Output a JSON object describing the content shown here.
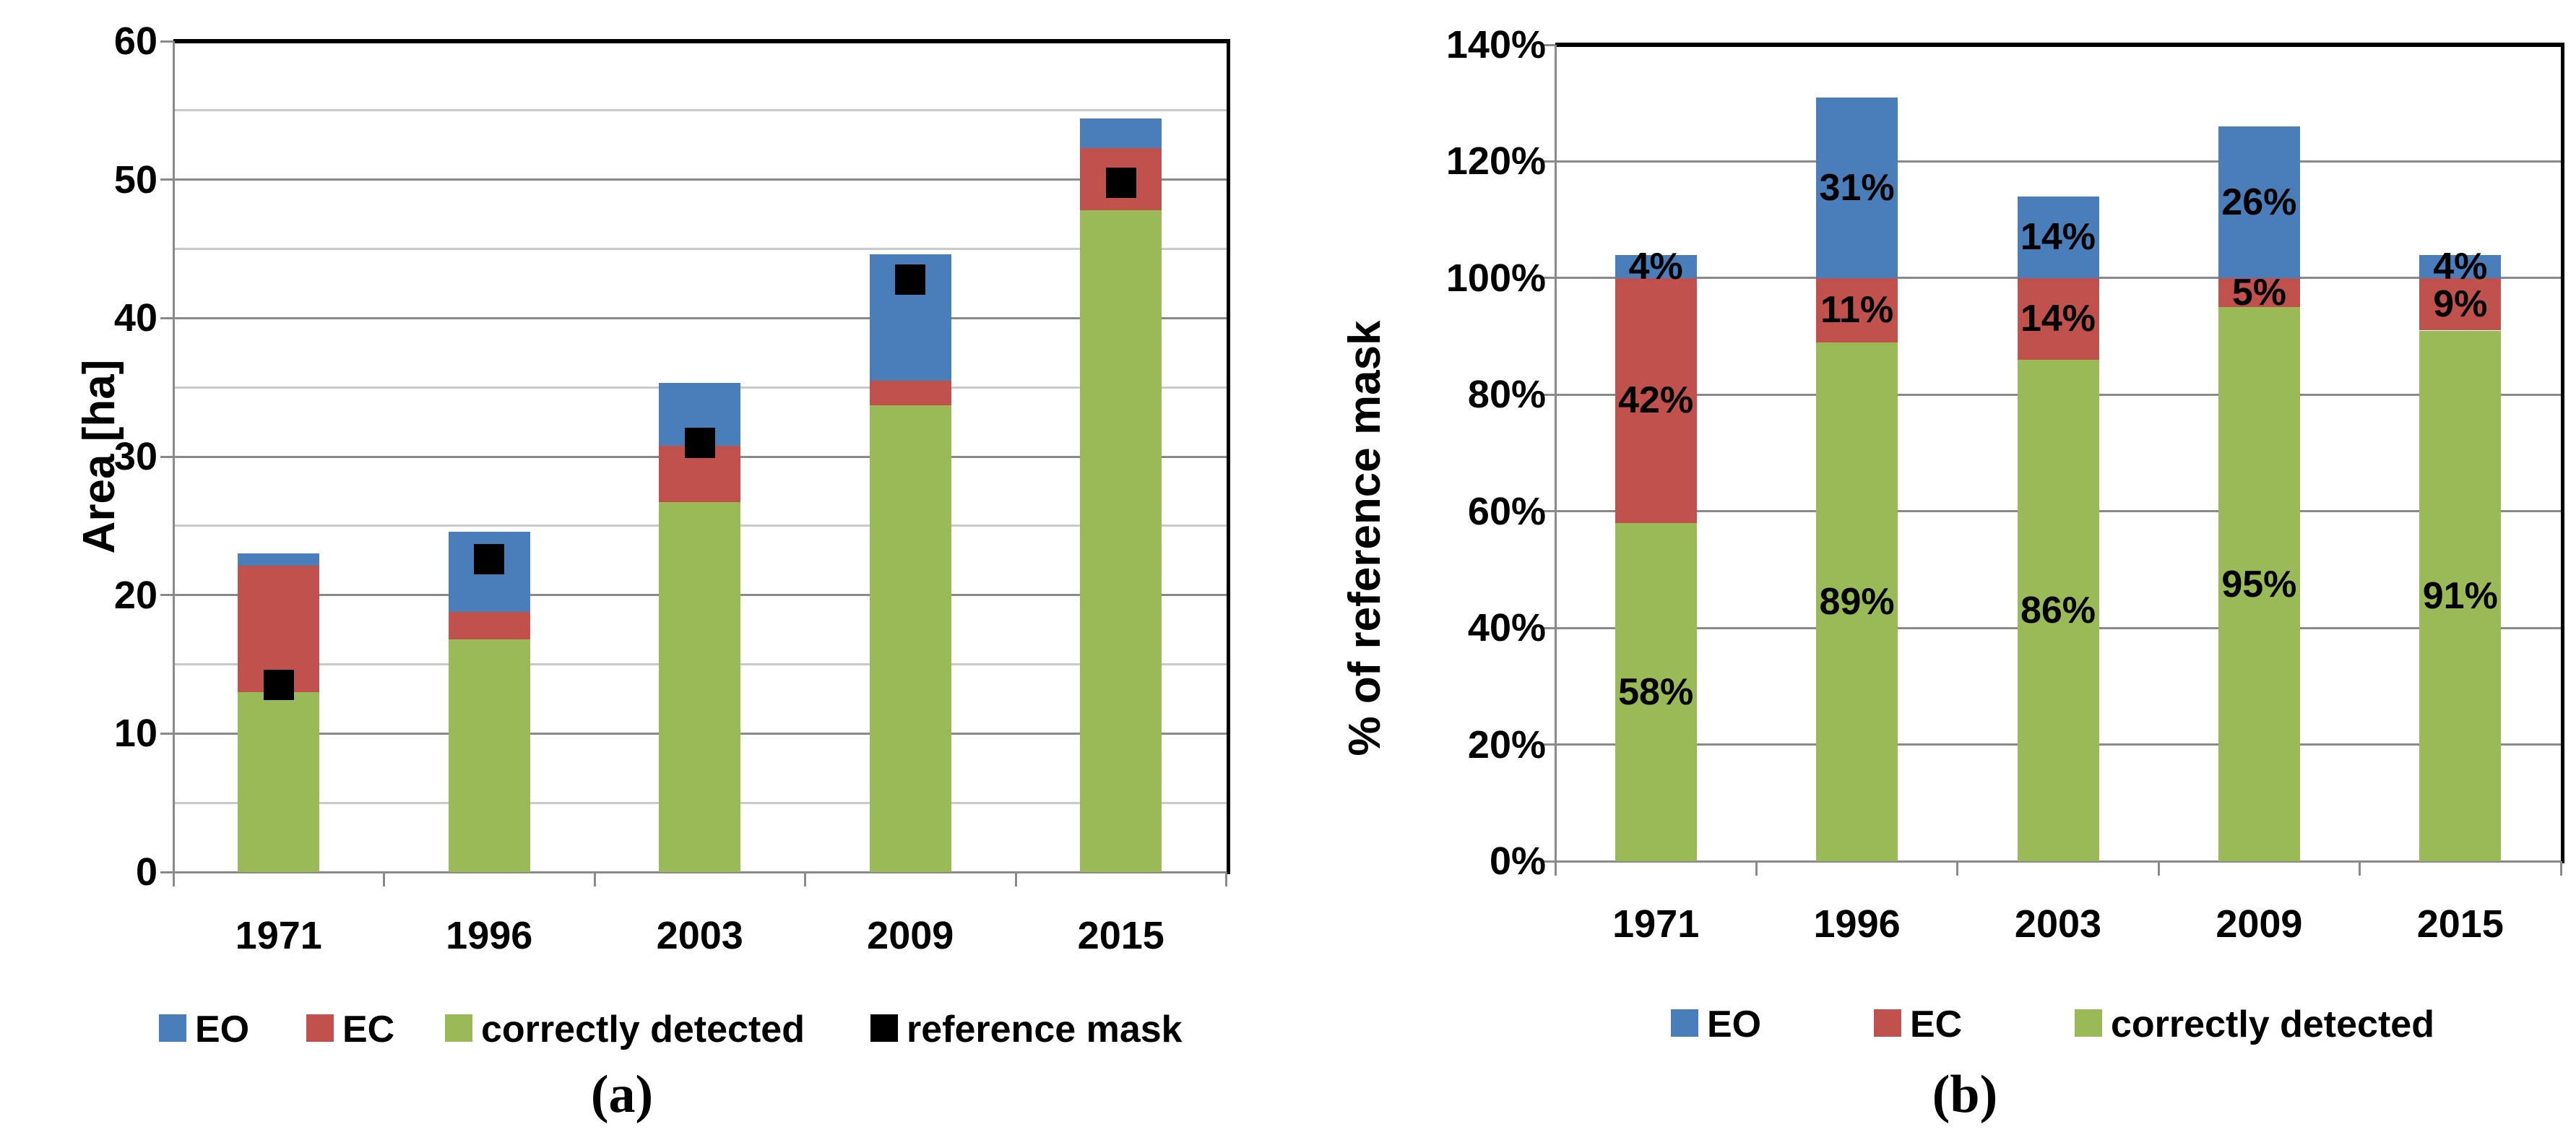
{
  "figure": {
    "caption_a": "(a)",
    "caption_b": "(b)"
  },
  "colors": {
    "eo": "#4a7ebb",
    "ec": "#c0514d",
    "correct": "#9aba58",
    "reference": "#000000",
    "gridline_major": "#8a8a8a",
    "gridline_minor": "#c9c9c9",
    "axis": "#8a8a8a",
    "border": "#000000",
    "text": "#000000"
  },
  "chart_data": [
    {
      "id": "a",
      "type": "bar",
      "stacked": true,
      "title": "",
      "xlabel": "",
      "ylabel": "Area [ha]",
      "ylim": [
        0,
        60
      ],
      "ytick_step": 10,
      "gridline_step": 5,
      "grid": "on",
      "legend_position": "bottom",
      "yticks": [
        "0",
        "10",
        "20",
        "30",
        "40",
        "50",
        "60"
      ],
      "categories": [
        "1971",
        "1996",
        "2003",
        "2009",
        "2015"
      ],
      "series": [
        {
          "name": "correctly detected",
          "color_key": "correct",
          "values": [
            13.0,
            16.8,
            26.7,
            33.7,
            47.8
          ]
        },
        {
          "name": "EC",
          "color_key": "ec",
          "values": [
            9.1,
            2.0,
            4.1,
            1.8,
            4.5
          ]
        },
        {
          "name": "EO",
          "color_key": "eo",
          "values": [
            0.9,
            5.8,
            4.5,
            9.1,
            2.1
          ]
        }
      ],
      "marker_series": {
        "name": "reference mask",
        "color_key": "reference",
        "values": [
          13.5,
          22.6,
          31.0,
          42.8,
          49.8
        ]
      },
      "legend": [
        {
          "label": "EO",
          "color_key": "eo"
        },
        {
          "label": "EC",
          "color_key": "ec"
        },
        {
          "label": "correctly detected",
          "color_key": "correct"
        },
        {
          "label": "reference mask",
          "color_key": "reference"
        }
      ]
    },
    {
      "id": "b",
      "type": "bar",
      "stacked": true,
      "title": "",
      "xlabel": "",
      "ylabel": "% of reference mask",
      "ylim": [
        0,
        140
      ],
      "ytick_step": 20,
      "gridline_step": 20,
      "grid": "on",
      "legend_position": "bottom",
      "yticks": [
        "0%",
        "20%",
        "40%",
        "60%",
        "80%",
        "100%",
        "120%",
        "140%"
      ],
      "categories": [
        "1971",
        "1996",
        "2003",
        "2009",
        "2015"
      ],
      "series": [
        {
          "name": "correctly detected",
          "color_key": "correct",
          "values": [
            58,
            89,
            86,
            95,
            91
          ],
          "labels": [
            "58%",
            "89%",
            "86%",
            "95%",
            "91%"
          ]
        },
        {
          "name": "EC",
          "color_key": "ec",
          "values": [
            42,
            11,
            14,
            5,
            9
          ],
          "labels": [
            "42%",
            "11%",
            "14%",
            "5%",
            "9%"
          ]
        },
        {
          "name": "EO",
          "color_key": "eo",
          "values": [
            4,
            31,
            14,
            26,
            4
          ],
          "labels": [
            "4%",
            "31%",
            "14%",
            "26%",
            "4%"
          ]
        }
      ],
      "legend": [
        {
          "label": "EO",
          "color_key": "eo"
        },
        {
          "label": "EC",
          "color_key": "ec"
        },
        {
          "label": "correctly detected",
          "color_key": "correct"
        }
      ]
    }
  ]
}
